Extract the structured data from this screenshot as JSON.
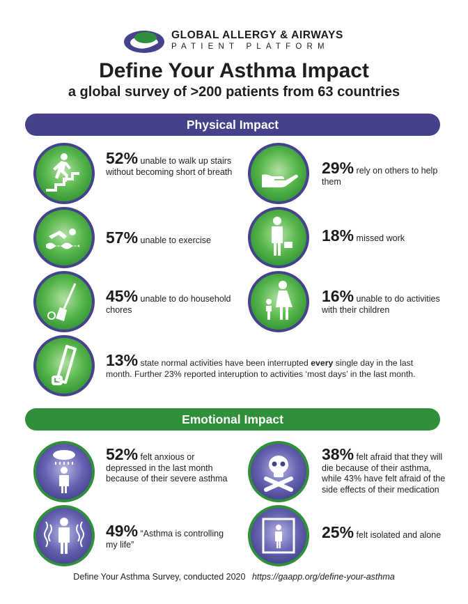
{
  "brand": {
    "line1": "GLOBAL ALLERGY & AIRWAYS",
    "line2": "PATIENT PLATFORM"
  },
  "title": "Define Your Asthma Impact",
  "subtitle": "a global survey of >200 patients from 63 countries",
  "physical": {
    "heading": "Physical Impact",
    "items": [
      {
        "icon": "stairs-climber-icon",
        "pct": "52%",
        "text": "unable to walk up stairs without becoming short of breath"
      },
      {
        "icon": "helping-hand-icon",
        "pct": "29%",
        "text": "rely on others to help them"
      },
      {
        "icon": "swimmer-icon",
        "pct": "57%",
        "text": "unable to exercise"
      },
      {
        "icon": "businessman-icon",
        "pct": "18%",
        "text": "missed work"
      },
      {
        "icon": "broom-icon",
        "pct": "45%",
        "text": "unable to do household chores"
      },
      {
        "icon": "parent-child-icon",
        "pct": "16%",
        "text": "unable to do activities with their children"
      }
    ],
    "wide": {
      "icon": "inhaler-icon",
      "pct": "13%",
      "text_before": "state normal activities have been interrupted",
      "emphasis": "every",
      "text_after": "single day in the last month. Further 23% reported interuption to activities ‘most days’ in the last month."
    }
  },
  "emotional": {
    "heading": "Emotional Impact",
    "items": [
      {
        "icon": "rain-cloud-person-icon",
        "pct": "52%",
        "text": "felt anxious or depressed in the last month because of their severe asthma"
      },
      {
        "icon": "skull-crossbones-icon",
        "pct": "38%",
        "text": "felt afraid that they will die because of their asthma, while 43% have felt afraid of the side effects of their medication"
      },
      {
        "icon": "stressed-person-icon",
        "pct": "49%",
        "text": "“Asthma is controlling my life”"
      },
      {
        "icon": "isolated-person-icon",
        "pct": "25%",
        "text": "felt isolated and alone"
      }
    ]
  },
  "footer": {
    "source": "Define Your Asthma Survey, conducted 2020",
    "url": "https://gaapp.org/define-your-asthma"
  },
  "colors": {
    "purple": "#43428a",
    "green": "#2f8f3a",
    "icon_green": "#57b74b",
    "icon_purple": "#6866b4"
  }
}
